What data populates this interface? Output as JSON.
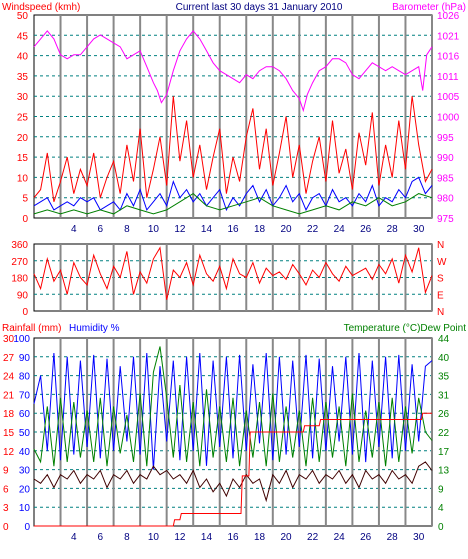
{
  "chart_data": [
    {
      "type": "line",
      "title": "Current last 30 days 31 January 2010",
      "left_axis_label": "Windspeed (kmh)",
      "right_axis_label": "Barometer (hPa)",
      "left_ticks": [
        "0",
        "5",
        "10",
        "15",
        "20",
        "25",
        "30",
        "35",
        "40",
        "45",
        "50"
      ],
      "right_ticks": [
        "975",
        "980",
        "985",
        "990",
        "995",
        "1000",
        "1005",
        "1011",
        "1016",
        "1021",
        "1026"
      ],
      "ylim_left": [
        0,
        50
      ],
      "ylim_right": [
        975,
        1026
      ],
      "x_ticks": [
        "4",
        "6",
        "8",
        "10",
        "12",
        "14",
        "16",
        "18",
        "20",
        "22",
        "24",
        "26",
        "28",
        "30"
      ],
      "xlim": [
        1,
        31
      ],
      "grid": true,
      "series": [
        {
          "key": "barometer",
          "axis": "right",
          "color": "#ff00ff",
          "x": [
            1,
            1.5,
            2,
            2.5,
            3,
            3.5,
            4,
            4.5,
            5,
            5.5,
            6,
            6.5,
            7,
            7.5,
            8,
            8.5,
            9,
            9.5,
            10,
            10.3,
            10.6,
            11,
            11.5,
            12,
            12.5,
            13,
            13.5,
            14,
            14.5,
            15,
            15.5,
            16,
            16.5,
            17,
            17.5,
            18,
            18.5,
            19,
            19.5,
            20,
            20.5,
            21,
            21.3,
            21.6,
            22,
            22.5,
            23,
            23.5,
            24,
            24.5,
            25,
            25.5,
            26,
            26.5,
            27,
            27.5,
            28,
            28.5,
            29,
            29.5,
            30,
            30.3,
            30.6,
            31
          ],
          "y": [
            1018,
            1020,
            1022,
            1020,
            1016,
            1015,
            1016,
            1016,
            1018,
            1020,
            1021,
            1020,
            1019,
            1018,
            1015,
            1016,
            1017,
            1013,
            1009,
            1007,
            1004,
            1006,
            1012,
            1017,
            1020,
            1022,
            1020,
            1017,
            1014,
            1012,
            1011,
            1010,
            1009,
            1011,
            1010,
            1012,
            1013,
            1013,
            1012,
            1010,
            1007,
            1005,
            1002,
            1006,
            1009,
            1012,
            1013,
            1015,
            1015,
            1014,
            1011,
            1010,
            1012,
            1014,
            1013,
            1012,
            1013,
            1012,
            1011,
            1012,
            1013,
            1007,
            1016,
            1018
          ]
        },
        {
          "key": "windspeed",
          "axis": "left",
          "color": "#ff0000",
          "x": [
            1,
            1.5,
            2,
            2.5,
            3,
            3.5,
            4,
            4.5,
            5,
            5.5,
            6,
            6.5,
            7,
            7.5,
            8,
            8.5,
            9,
            9.5,
            10,
            10.5,
            11,
            11.5,
            12,
            12.5,
            13,
            13.5,
            14,
            14.5,
            15,
            15.5,
            16,
            16.5,
            17,
            17.5,
            18,
            18.5,
            19,
            19.5,
            20,
            20.5,
            21,
            21.5,
            22,
            22.5,
            23,
            23.5,
            24,
            24.5,
            25,
            25.5,
            26,
            26.5,
            27,
            27.5,
            28,
            28.5,
            29,
            29.5,
            30,
            30.5,
            31
          ],
          "y": [
            5,
            7,
            16,
            4,
            9,
            15,
            6,
            12,
            8,
            16,
            5,
            10,
            14,
            6,
            18,
            9,
            22,
            5,
            12,
            20,
            8,
            30,
            14,
            24,
            10,
            18,
            7,
            15,
            22,
            6,
            15,
            9,
            20,
            27,
            12,
            22,
            8,
            16,
            25,
            10,
            18,
            6,
            14,
            20,
            9,
            24,
            11,
            17,
            7,
            21,
            13,
            26,
            8,
            18,
            10,
            24,
            12,
            30,
            18,
            9,
            12
          ]
        },
        {
          "key": "wind_avg",
          "axis": "left",
          "color": "#0000ff",
          "x": [
            1,
            1.5,
            2,
            2.5,
            3,
            3.5,
            4,
            4.5,
            5,
            5.5,
            6,
            6.5,
            7,
            7.5,
            8,
            8.5,
            9,
            9.5,
            10,
            10.5,
            11,
            11.5,
            12,
            12.5,
            13,
            13.5,
            14,
            14.5,
            15,
            15.5,
            16,
            16.5,
            17,
            17.5,
            18,
            18.5,
            19,
            19.5,
            20,
            20.5,
            21,
            21.5,
            22,
            22.5,
            23,
            23.5,
            24,
            24.5,
            25,
            25.5,
            26,
            26.5,
            27,
            27.5,
            28,
            28.5,
            29,
            29.5,
            30,
            30.5,
            31
          ],
          "y": [
            3,
            4,
            5,
            2,
            3,
            4,
            3,
            5,
            4,
            5,
            2,
            3,
            4,
            2,
            6,
            3,
            7,
            2,
            4,
            6,
            3,
            9,
            5,
            7,
            4,
            6,
            3,
            5,
            7,
            2,
            5,
            3,
            6,
            8,
            4,
            7,
            3,
            5,
            8,
            4,
            6,
            2,
            5,
            6,
            3,
            7,
            4,
            5,
            3,
            6,
            4,
            8,
            3,
            5,
            4,
            7,
            5,
            9,
            10,
            6,
            8
          ]
        },
        {
          "key": "wind_dir_avg",
          "axis": "left",
          "color": "#008000",
          "x": [
            1,
            2,
            3,
            4,
            5,
            6,
            7,
            8,
            9,
            10,
            11,
            12,
            13,
            14,
            15,
            16,
            17,
            18,
            19,
            20,
            21,
            22,
            23,
            24,
            25,
            26,
            27,
            28,
            29,
            30,
            31
          ],
          "y": [
            1,
            2,
            1,
            2,
            1,
            2,
            1,
            3,
            2,
            1,
            2,
            4,
            6,
            3,
            2,
            3,
            4,
            5,
            3,
            2,
            1,
            2,
            3,
            2,
            4,
            3,
            5,
            3,
            4,
            6,
            5
          ]
        }
      ]
    },
    {
      "type": "line",
      "left_ticks": [
        "0",
        "90",
        "180",
        "270",
        "360"
      ],
      "right_ticks": [
        "N",
        "E",
        "S",
        "W",
        "N"
      ],
      "ylim": [
        0,
        360
      ],
      "xlim": [
        1,
        31
      ],
      "grid": true,
      "series": [
        {
          "key": "wind_direction",
          "color": "#ff0000",
          "x": [
            1,
            1.5,
            2,
            2.5,
            3,
            3.5,
            4,
            4.5,
            5,
            5.5,
            6,
            6.5,
            7,
            7.5,
            8,
            8.5,
            9,
            9.5,
            10,
            10.5,
            11,
            11.5,
            12,
            12.5,
            13,
            13.5,
            14,
            14.5,
            15,
            15.5,
            16,
            16.5,
            17,
            17.5,
            18,
            18.5,
            19,
            19.5,
            20,
            20.5,
            21,
            21.5,
            22,
            22.5,
            23,
            23.5,
            24,
            24.5,
            25,
            25.5,
            26,
            26.5,
            27,
            27.5,
            28,
            28.5,
            29,
            29.5,
            30,
            30.5,
            31
          ],
          "y": [
            200,
            120,
            280,
            160,
            220,
            90,
            260,
            180,
            140,
            300,
            200,
            120,
            240,
            180,
            320,
            90,
            210,
            150,
            280,
            340,
            60,
            220,
            180,
            260,
            140,
            300,
            200,
            160,
            240,
            120,
            280,
            200,
            180,
            260,
            150,
            230,
            190,
            210,
            170,
            250,
            200,
            140,
            220,
            180,
            260,
            200,
            160,
            240,
            190,
            210,
            230,
            170,
            250,
            200,
            280,
            150,
            300,
            210,
            340,
            100,
            190
          ]
        }
      ]
    },
    {
      "type": "line",
      "left_label_a": "Rainfall (mm)",
      "left_label_b": "Humidity %",
      "right_label": "Temperature (°C)Dew Point",
      "rain_ticks": [
        "0",
        "3",
        "6",
        "9",
        "12",
        "15",
        "18",
        "21",
        "24",
        "27",
        "30"
      ],
      "humidity_ticks": [
        "0",
        "10",
        "20",
        "30",
        "40",
        "50",
        "60",
        "70",
        "80",
        "90",
        "100"
      ],
      "temp_ticks": [
        "0",
        "4",
        "9",
        "13",
        "17",
        "22",
        "26",
        "31",
        "35",
        "40",
        "44"
      ],
      "ylim_humidity": [
        0,
        100
      ],
      "ylim_temp": [
        0,
        44
      ],
      "xlim": [
        1,
        31
      ],
      "grid": true,
      "series": [
        {
          "key": "humidity",
          "axis": "humidity",
          "color": "#0000ff",
          "x": [
            1,
            1.5,
            2,
            2.5,
            3,
            3.5,
            4,
            4.5,
            5,
            5.5,
            6,
            6.5,
            7,
            7.5,
            8,
            8.5,
            9,
            9.5,
            10,
            10.5,
            11,
            11.5,
            12,
            12.5,
            13,
            13.5,
            14,
            14.5,
            15,
            15.5,
            16,
            16.5,
            17,
            17.5,
            18,
            18.5,
            19,
            19.5,
            20,
            20.5,
            21,
            21.5,
            22,
            22.5,
            23,
            23.5,
            24,
            24.5,
            25,
            25.5,
            26,
            26.5,
            27,
            27.5,
            28,
            28.5,
            29,
            29.5,
            30,
            30.5,
            31
          ],
          "y": [
            65,
            80,
            40,
            92,
            35,
            90,
            38,
            88,
            42,
            91,
            36,
            89,
            40,
            85,
            45,
            90,
            38,
            92,
            30,
            85,
            45,
            88,
            35,
            90,
            40,
            92,
            32,
            88,
            42,
            90,
            36,
            91,
            40,
            86,
            44,
            92,
            35,
            90,
            38,
            88,
            42,
            91,
            36,
            89,
            40,
            85,
            45,
            90,
            38,
            92,
            34,
            88,
            42,
            90,
            36,
            91,
            40,
            86,
            45,
            85,
            88
          ]
        },
        {
          "key": "temperature",
          "axis": "temp",
          "color": "#008000",
          "x": [
            1,
            1.5,
            2,
            2.5,
            3,
            3.5,
            4,
            4.5,
            5,
            5.5,
            6,
            6.5,
            7,
            7.5,
            8,
            8.5,
            9,
            9.5,
            10,
            10.5,
            11,
            11.5,
            12,
            12.5,
            13,
            13.5,
            14,
            14.5,
            15,
            15.5,
            16,
            16.5,
            17,
            17.5,
            18,
            18.5,
            19,
            19.5,
            20,
            20.5,
            21,
            21.5,
            22,
            22.5,
            23,
            23.5,
            24,
            24.5,
            25,
            25.5,
            26,
            26.5,
            27,
            27.5,
            28,
            28.5,
            29,
            29.5,
            30,
            30.5,
            31
          ],
          "y": [
            18,
            15,
            28,
            14,
            30,
            15,
            29,
            16,
            27,
            15,
            30,
            14,
            28,
            17,
            26,
            15,
            31,
            14,
            36,
            42,
            30,
            16,
            33,
            15,
            29,
            14,
            32,
            16,
            28,
            15,
            30,
            14,
            27,
            16,
            29,
            14,
            31,
            15,
            28,
            16,
            27,
            14,
            30,
            15,
            29,
            16,
            28,
            14,
            31,
            15,
            27,
            16,
            29,
            14,
            30,
            15,
            28,
            17,
            30,
            22,
            20
          ]
        },
        {
          "key": "dew_point",
          "axis": "temp",
          "color": "#400000",
          "x": [
            1,
            1.5,
            2,
            2.5,
            3,
            3.5,
            4,
            4.5,
            5,
            5.5,
            6,
            6.5,
            7,
            7.5,
            8,
            8.5,
            9,
            9.5,
            10,
            10.5,
            11,
            11.5,
            12,
            12.5,
            13,
            13.5,
            14,
            14.5,
            15,
            15.5,
            16,
            16.5,
            17,
            17.5,
            18,
            18.5,
            19,
            19.5,
            20,
            20.5,
            21,
            21.5,
            22,
            22.5,
            23,
            23.5,
            24,
            24.5,
            25,
            25.5,
            26,
            26.5,
            27,
            27.5,
            28,
            28.5,
            29,
            29.5,
            30,
            30.5,
            31
          ],
          "y": [
            11,
            10,
            12,
            9,
            12,
            11,
            13,
            10,
            12,
            11,
            13,
            9,
            12,
            11,
            13,
            10,
            12,
            11,
            14,
            12,
            13,
            11,
            12,
            10,
            13,
            9,
            11,
            8,
            10,
            7,
            11,
            9,
            12,
            10,
            11,
            6,
            12,
            10,
            13,
            9,
            12,
            11,
            13,
            10,
            12,
            11,
            13,
            10,
            12,
            9,
            13,
            11,
            12,
            10,
            13,
            11,
            12,
            10,
            14,
            15,
            13
          ]
        },
        {
          "key": "rainfall",
          "axis": "rain",
          "color": "#ff0000",
          "x": [
            1,
            11.5,
            11.6,
            12,
            12.1,
            16.6,
            16.7,
            17.2,
            17.3,
            18,
            19,
            21.3,
            21.4,
            22.5,
            22.6,
            23,
            23.1,
            30.2,
            30.3,
            31
          ],
          "y": [
            0,
            0,
            1,
            1,
            2,
            2,
            8,
            8,
            15,
            15,
            15,
            15,
            16,
            16,
            17,
            17,
            17,
            17,
            18,
            18
          ]
        }
      ]
    }
  ]
}
